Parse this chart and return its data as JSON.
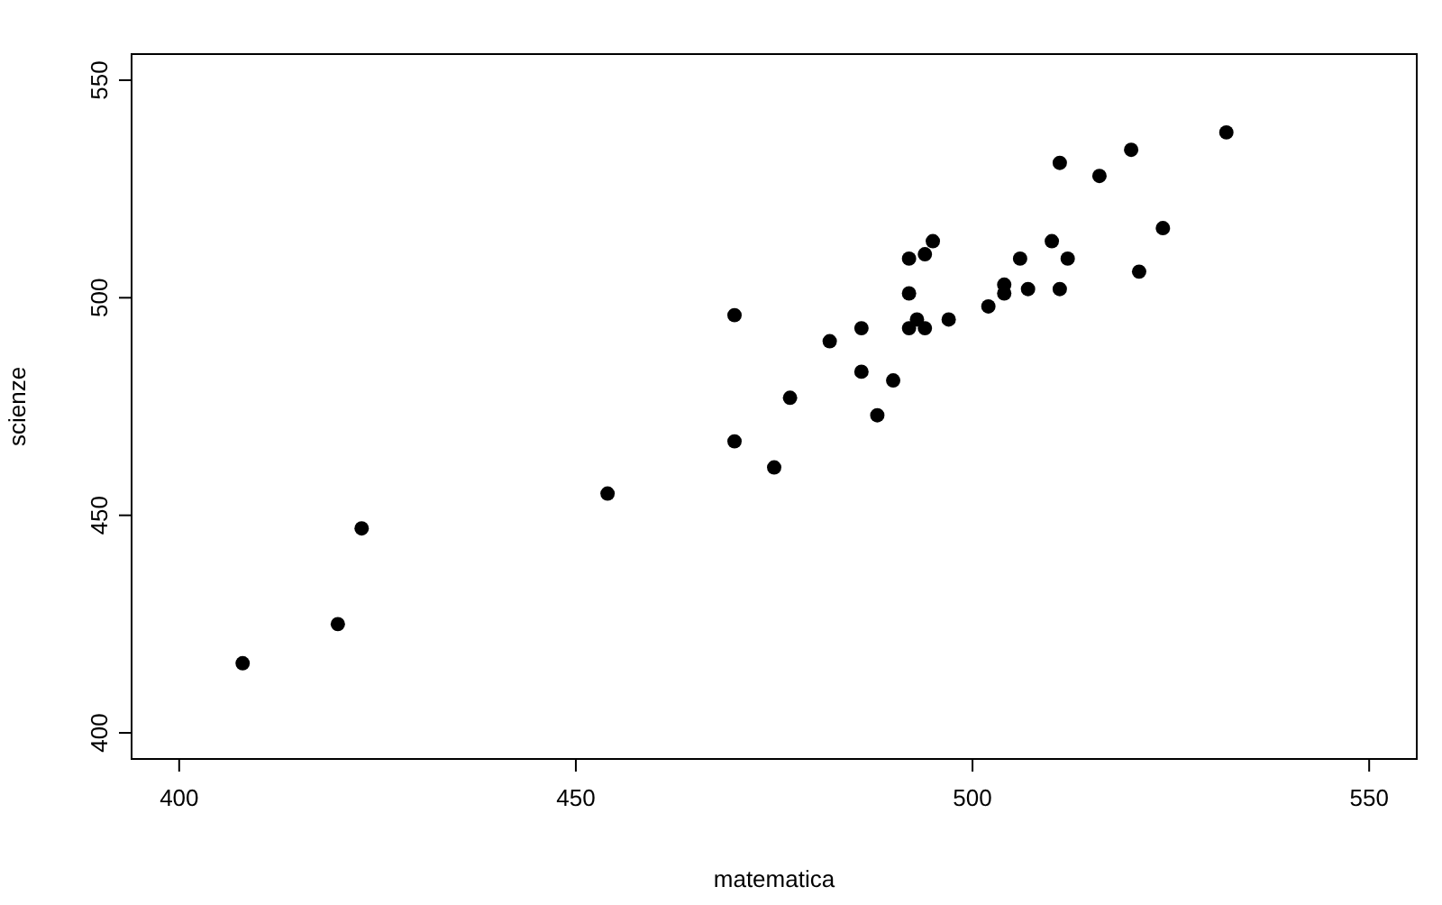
{
  "chart_data": {
    "type": "scatter",
    "xlabel": "matematica",
    "ylabel": "scienze",
    "x": [
      408,
      420,
      423,
      454,
      470,
      470,
      475,
      477,
      482,
      486,
      486,
      488,
      490,
      492,
      492,
      492,
      493,
      494,
      494,
      495,
      497,
      502,
      504,
      504,
      506,
      507,
      510,
      511,
      511,
      512,
      516,
      520,
      521,
      524,
      532
    ],
    "series": [
      {
        "color": "#000000",
        "values": [
          416,
          425,
          447,
          455,
          496,
          467,
          461,
          477,
          490,
          493,
          483,
          473,
          481,
          509,
          501,
          493,
          495,
          493,
          510,
          513,
          495,
          498,
          503,
          501,
          509,
          502,
          513,
          531,
          502,
          509,
          528,
          534,
          506,
          516,
          538
        ]
      }
    ],
    "xlim": [
      394,
      556
    ],
    "ylim": [
      394,
      556
    ],
    "xticks": [
      400,
      450,
      500,
      550
    ],
    "yticks": [
      400,
      450,
      500,
      550
    ],
    "marker": "circle"
  }
}
